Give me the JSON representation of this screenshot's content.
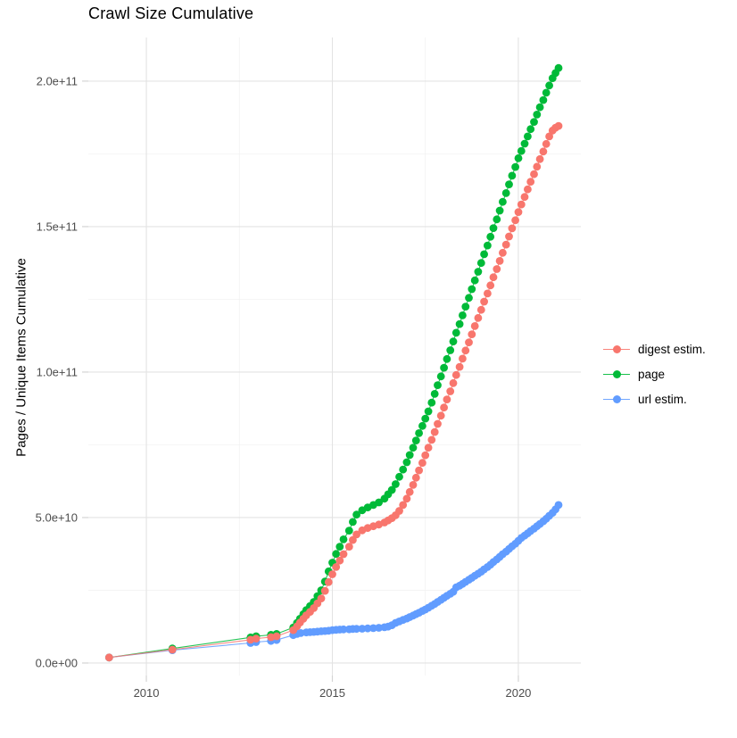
{
  "chart_data": {
    "type": "scatter",
    "title": "Crawl Size Cumulative",
    "xlabel": "",
    "ylabel": "Pages / Unique Items Cumulative",
    "x_ticks": [
      2010,
      2015,
      2020
    ],
    "x_tick_labels": [
      "2010",
      "2015",
      "2020"
    ],
    "x_minor_ticks": [
      2012.5,
      2017.5
    ],
    "y_ticks_e9": [
      0,
      50,
      100,
      150,
      200
    ],
    "y_tick_labels": [
      "0.0e+00",
      "5.0e+10",
      "1.0e+11",
      "1.5e+11",
      "2.0e+11"
    ],
    "y_minor_ticks_e9": [
      25,
      75,
      125,
      175
    ],
    "xlim": [
      2008.44,
      2021.68
    ],
    "ylim_e9": [
      -4.3,
      215.0
    ],
    "grid": true,
    "legend_position": "right",
    "value_unit": "1e9 items (values below are billions)",
    "colors": {
      "major_grid": "#e3e3e3",
      "minor_grid": "#f0f0f0",
      "tick": "#d4d4d4",
      "axis_text": "#4d4d4d"
    },
    "draw_order": [
      1,
      2,
      0
    ],
    "series": [
      {
        "name": "digest estim.",
        "color": "#F8766D",
        "points": [
          [
            2009.0,
            1.9
          ],
          [
            2010.7,
            4.6
          ],
          [
            2012.8,
            8.0
          ],
          [
            2012.95,
            8.4
          ],
          [
            2013.35,
            8.9
          ],
          [
            2013.5,
            9.2
          ],
          [
            2013.95,
            11.3
          ],
          [
            2014.05,
            12.6
          ],
          [
            2014.13,
            13.9
          ],
          [
            2014.22,
            15.2
          ],
          [
            2014.3,
            16.4
          ],
          [
            2014.4,
            17.6
          ],
          [
            2014.5,
            18.9
          ],
          [
            2014.6,
            20.5
          ],
          [
            2014.7,
            22.2
          ],
          [
            2014.8,
            24.8
          ],
          [
            2014.9,
            27.8
          ],
          [
            2015.0,
            30.5
          ],
          [
            2015.1,
            33.0
          ],
          [
            2015.2,
            35.2
          ],
          [
            2015.3,
            37.4
          ],
          [
            2015.45,
            40.0
          ],
          [
            2015.55,
            42.3
          ],
          [
            2015.65,
            44.2
          ],
          [
            2015.8,
            45.6
          ],
          [
            2015.95,
            46.4
          ],
          [
            2016.1,
            47.0
          ],
          [
            2016.25,
            47.6
          ],
          [
            2016.4,
            48.3
          ],
          [
            2016.5,
            49.0
          ],
          [
            2016.6,
            49.8
          ],
          [
            2016.7,
            50.8
          ],
          [
            2016.8,
            52.3
          ],
          [
            2016.9,
            54.3
          ],
          [
            2017.0,
            56.5
          ],
          [
            2017.08,
            58.8
          ],
          [
            2017.17,
            61.2
          ],
          [
            2017.25,
            63.7
          ],
          [
            2017.33,
            66.2
          ],
          [
            2017.42,
            68.8
          ],
          [
            2017.5,
            71.4
          ],
          [
            2017.58,
            74.0
          ],
          [
            2017.67,
            76.7
          ],
          [
            2017.75,
            79.4
          ],
          [
            2017.83,
            82.2
          ],
          [
            2017.92,
            85.0
          ],
          [
            2018.0,
            87.8
          ],
          [
            2018.08,
            90.6
          ],
          [
            2018.17,
            93.4
          ],
          [
            2018.25,
            96.2
          ],
          [
            2018.33,
            99.0
          ],
          [
            2018.42,
            101.8
          ],
          [
            2018.5,
            104.6
          ],
          [
            2018.58,
            107.4
          ],
          [
            2018.67,
            110.2
          ],
          [
            2018.75,
            113.0
          ],
          [
            2018.83,
            115.8
          ],
          [
            2018.92,
            118.6
          ],
          [
            2019.0,
            121.4
          ],
          [
            2019.08,
            124.2
          ],
          [
            2019.17,
            127.0
          ],
          [
            2019.25,
            129.8
          ],
          [
            2019.33,
            132.6
          ],
          [
            2019.42,
            135.4
          ],
          [
            2019.5,
            138.2
          ],
          [
            2019.58,
            141.0
          ],
          [
            2019.67,
            143.8
          ],
          [
            2019.75,
            146.6
          ],
          [
            2019.83,
            149.4
          ],
          [
            2019.92,
            152.2
          ],
          [
            2020.0,
            155.0
          ],
          [
            2020.08,
            157.6
          ],
          [
            2020.17,
            160.2
          ],
          [
            2020.25,
            162.8
          ],
          [
            2020.33,
            165.4
          ],
          [
            2020.42,
            168.0
          ],
          [
            2020.5,
            170.6
          ],
          [
            2020.58,
            173.2
          ],
          [
            2020.67,
            175.8
          ],
          [
            2020.75,
            178.4
          ],
          [
            2020.83,
            181.0
          ],
          [
            2020.92,
            183.0
          ],
          [
            2021.0,
            184.0
          ],
          [
            2021.08,
            184.6
          ]
        ]
      },
      {
        "name": "page",
        "color": "#00BA38",
        "points": [
          [
            2009.0,
            1.9
          ],
          [
            2010.7,
            5.0
          ],
          [
            2012.8,
            8.8
          ],
          [
            2012.95,
            9.2
          ],
          [
            2013.35,
            9.7
          ],
          [
            2013.5,
            10.0
          ],
          [
            2013.95,
            12.2
          ],
          [
            2014.05,
            13.8
          ],
          [
            2014.13,
            15.2
          ],
          [
            2014.22,
            16.8
          ],
          [
            2014.3,
            18.2
          ],
          [
            2014.4,
            19.6
          ],
          [
            2014.5,
            21.0
          ],
          [
            2014.6,
            23.0
          ],
          [
            2014.7,
            25.0
          ],
          [
            2014.8,
            28.0
          ],
          [
            2014.9,
            31.5
          ],
          [
            2015.0,
            34.5
          ],
          [
            2015.1,
            37.5
          ],
          [
            2015.2,
            40.0
          ],
          [
            2015.3,
            42.5
          ],
          [
            2015.45,
            45.5
          ],
          [
            2015.55,
            48.5
          ],
          [
            2015.65,
            51.0
          ],
          [
            2015.8,
            52.5
          ],
          [
            2015.95,
            53.5
          ],
          [
            2016.1,
            54.3
          ],
          [
            2016.25,
            55.2
          ],
          [
            2016.4,
            56.5
          ],
          [
            2016.5,
            58.0
          ],
          [
            2016.6,
            59.5
          ],
          [
            2016.7,
            61.5
          ],
          [
            2016.8,
            64.0
          ],
          [
            2016.9,
            66.5
          ],
          [
            2017.0,
            69.0
          ],
          [
            2017.08,
            71.5
          ],
          [
            2017.17,
            74.0
          ],
          [
            2017.25,
            76.5
          ],
          [
            2017.33,
            79.0
          ],
          [
            2017.42,
            81.5
          ],
          [
            2017.5,
            84.0
          ],
          [
            2017.58,
            86.5
          ],
          [
            2017.67,
            89.5
          ],
          [
            2017.75,
            92.5
          ],
          [
            2017.83,
            95.5
          ],
          [
            2017.92,
            98.5
          ],
          [
            2018.0,
            101.5
          ],
          [
            2018.08,
            104.5
          ],
          [
            2018.17,
            107.5
          ],
          [
            2018.25,
            110.5
          ],
          [
            2018.33,
            113.5
          ],
          [
            2018.42,
            116.5
          ],
          [
            2018.5,
            119.5
          ],
          [
            2018.58,
            122.5
          ],
          [
            2018.67,
            125.5
          ],
          [
            2018.75,
            128.5
          ],
          [
            2018.83,
            131.5
          ],
          [
            2018.92,
            134.5
          ],
          [
            2019.0,
            137.5
          ],
          [
            2019.08,
            140.5
          ],
          [
            2019.17,
            143.5
          ],
          [
            2019.25,
            146.5
          ],
          [
            2019.33,
            149.5
          ],
          [
            2019.42,
            152.5
          ],
          [
            2019.5,
            155.5
          ],
          [
            2019.58,
            158.5
          ],
          [
            2019.67,
            161.5
          ],
          [
            2019.75,
            164.5
          ],
          [
            2019.83,
            167.5
          ],
          [
            2019.92,
            170.5
          ],
          [
            2020.0,
            173.5
          ],
          [
            2020.08,
            176.0
          ],
          [
            2020.17,
            178.5
          ],
          [
            2020.25,
            181.0
          ],
          [
            2020.33,
            183.5
          ],
          [
            2020.42,
            186.0
          ],
          [
            2020.5,
            188.5
          ],
          [
            2020.58,
            191.0
          ],
          [
            2020.67,
            193.5
          ],
          [
            2020.75,
            196.0
          ],
          [
            2020.83,
            198.5
          ],
          [
            2020.92,
            201.0
          ],
          [
            2021.0,
            202.8
          ],
          [
            2021.08,
            204.5
          ]
        ]
      },
      {
        "name": "url estim.",
        "color": "#619CFF",
        "points": [
          [
            2009.0,
            1.9
          ],
          [
            2010.7,
            4.4
          ],
          [
            2012.8,
            6.9
          ],
          [
            2012.95,
            7.2
          ],
          [
            2013.35,
            7.6
          ],
          [
            2013.5,
            7.9
          ],
          [
            2013.95,
            9.6
          ],
          [
            2014.05,
            10.0
          ],
          [
            2014.15,
            10.3
          ],
          [
            2014.3,
            10.5
          ],
          [
            2014.4,
            10.6
          ],
          [
            2014.5,
            10.7
          ],
          [
            2014.6,
            10.8
          ],
          [
            2014.7,
            10.9
          ],
          [
            2014.8,
            11.0
          ],
          [
            2014.9,
            11.1
          ],
          [
            2015.0,
            11.3
          ],
          [
            2015.1,
            11.4
          ],
          [
            2015.2,
            11.5
          ],
          [
            2015.3,
            11.55
          ],
          [
            2015.45,
            11.6
          ],
          [
            2015.55,
            11.7
          ],
          [
            2015.65,
            11.75
          ],
          [
            2015.8,
            11.8
          ],
          [
            2015.95,
            11.9
          ],
          [
            2016.1,
            12.0
          ],
          [
            2016.25,
            12.1
          ],
          [
            2016.4,
            12.3
          ],
          [
            2016.5,
            12.5
          ],
          [
            2016.6,
            13.0
          ],
          [
            2016.7,
            13.8
          ],
          [
            2016.8,
            14.3
          ],
          [
            2016.9,
            14.8
          ],
          [
            2017.0,
            15.3
          ],
          [
            2017.08,
            15.8
          ],
          [
            2017.17,
            16.3
          ],
          [
            2017.25,
            16.8
          ],
          [
            2017.33,
            17.3
          ],
          [
            2017.42,
            17.9
          ],
          [
            2017.5,
            18.4
          ],
          [
            2017.58,
            19.0
          ],
          [
            2017.67,
            19.7
          ],
          [
            2017.75,
            20.3
          ],
          [
            2017.83,
            21.0
          ],
          [
            2017.92,
            21.7
          ],
          [
            2018.0,
            22.4
          ],
          [
            2018.08,
            23.1
          ],
          [
            2018.17,
            23.8
          ],
          [
            2018.25,
            24.5
          ],
          [
            2018.33,
            26.0
          ],
          [
            2018.42,
            26.6
          ],
          [
            2018.5,
            27.2
          ],
          [
            2018.58,
            27.9
          ],
          [
            2018.67,
            28.6
          ],
          [
            2018.75,
            29.3
          ],
          [
            2018.83,
            30.0
          ],
          [
            2018.92,
            30.7
          ],
          [
            2019.0,
            31.4
          ],
          [
            2019.08,
            32.2
          ],
          [
            2019.17,
            33.0
          ],
          [
            2019.25,
            33.8
          ],
          [
            2019.33,
            34.7
          ],
          [
            2019.42,
            35.6
          ],
          [
            2019.5,
            36.5
          ],
          [
            2019.58,
            37.4
          ],
          [
            2019.67,
            38.3
          ],
          [
            2019.75,
            39.2
          ],
          [
            2019.83,
            40.1
          ],
          [
            2019.92,
            41.0
          ],
          [
            2020.0,
            42.0
          ],
          [
            2020.08,
            43.0
          ],
          [
            2020.17,
            43.8
          ],
          [
            2020.25,
            44.6
          ],
          [
            2020.33,
            45.4
          ],
          [
            2020.42,
            46.2
          ],
          [
            2020.5,
            47.0
          ],
          [
            2020.58,
            47.8
          ],
          [
            2020.67,
            48.7
          ],
          [
            2020.75,
            49.6
          ],
          [
            2020.83,
            50.6
          ],
          [
            2020.92,
            51.6
          ],
          [
            2021.0,
            52.8
          ],
          [
            2021.08,
            54.3
          ]
        ]
      }
    ]
  }
}
